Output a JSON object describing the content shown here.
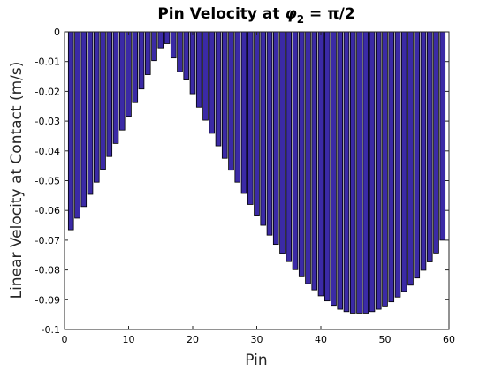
{
  "chart_data": {
    "type": "bar",
    "title": {
      "prefix": "Pin Velocity at ",
      "symbol": "φ",
      "subscript": "2",
      "suffix": " = π/2"
    },
    "xlabel": "Pin",
    "ylabel": "Linear Velocity at Contact (m/s)",
    "xlim": [
      0,
      60
    ],
    "ylim": [
      -0.1,
      0
    ],
    "xticks": [
      0,
      10,
      20,
      30,
      40,
      50,
      60
    ],
    "yticks": [
      0,
      -0.01,
      -0.02,
      -0.03,
      -0.04,
      -0.05,
      -0.06,
      -0.07,
      -0.08,
      -0.09,
      -0.1
    ],
    "ytick_labels": [
      "0",
      "-0.01",
      "-0.02",
      "-0.03",
      "-0.04",
      "-0.05",
      "-0.06",
      "-0.07",
      "-0.08",
      "-0.09",
      "-0.1"
    ],
    "grid": false,
    "bar_color": "#3b2aa6",
    "bar_edge_color": "#000000",
    "x": [
      1,
      2,
      3,
      4,
      5,
      6,
      7,
      8,
      9,
      10,
      11,
      12,
      13,
      14,
      15,
      16,
      17,
      18,
      19,
      20,
      21,
      22,
      23,
      24,
      25,
      26,
      27,
      28,
      29,
      30,
      31,
      32,
      33,
      34,
      35,
      36,
      37,
      38,
      39,
      40,
      41,
      42,
      43,
      44,
      45,
      46,
      47,
      48,
      49,
      50,
      51,
      52,
      53,
      54,
      55,
      56,
      57,
      58,
      59
    ],
    "values": [
      -0.0665,
      -0.0626,
      -0.0587,
      -0.0546,
      -0.0505,
      -0.0462,
      -0.0419,
      -0.0375,
      -0.033,
      -0.0284,
      -0.0238,
      -0.0192,
      -0.0144,
      -0.0097,
      -0.0054,
      -0.004,
      -0.0088,
      -0.0134,
      -0.0162,
      -0.0208,
      -0.0253,
      -0.0297,
      -0.0341,
      -0.0383,
      -0.0425,
      -0.0465,
      -0.0505,
      -0.0543,
      -0.058,
      -0.0616,
      -0.065,
      -0.0683,
      -0.0714,
      -0.0744,
      -0.0772,
      -0.0799,
      -0.0823,
      -0.0846,
      -0.0867,
      -0.0887,
      -0.0904,
      -0.0919,
      -0.0932,
      -0.094,
      -0.0945,
      -0.0945,
      -0.0945,
      -0.094,
      -0.0932,
      -0.0921,
      -0.0907,
      -0.0891,
      -0.0872,
      -0.0851,
      -0.0827,
      -0.0801,
      -0.0773,
      -0.0743,
      -0.07
    ]
  }
}
